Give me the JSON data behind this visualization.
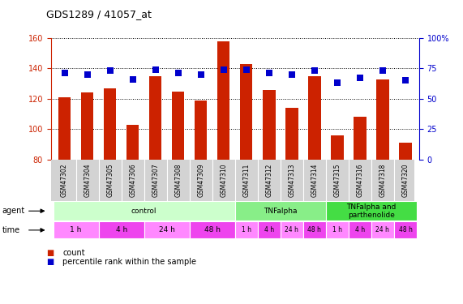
{
  "title": "GDS1289 / 41057_at",
  "samples": [
    "GSM47302",
    "GSM47304",
    "GSM47305",
    "GSM47306",
    "GSM47307",
    "GSM47308",
    "GSM47309",
    "GSM47310",
    "GSM47311",
    "GSM47312",
    "GSM47313",
    "GSM47314",
    "GSM47315",
    "GSM47316",
    "GSM47318",
    "GSM47320"
  ],
  "count_values": [
    121,
    124,
    127,
    103,
    135,
    125,
    119,
    158,
    143,
    126,
    114,
    135,
    96,
    108,
    133,
    91
  ],
  "percentile_values": [
    71,
    70,
    73,
    66,
    74,
    71,
    70,
    74,
    74,
    71,
    70,
    73,
    63,
    67,
    73,
    65
  ],
  "ylim_left": [
    80,
    160
  ],
  "ylim_right": [
    0,
    100
  ],
  "yticks_left": [
    80,
    100,
    120,
    140,
    160
  ],
  "yticks_right": [
    0,
    25,
    50,
    75,
    100
  ],
  "bar_color": "#CC2200",
  "dot_color": "#0000CC",
  "bar_width": 0.55,
  "grid_color": "black",
  "left_axis_color": "#CC2200",
  "right_axis_color": "#0000CC",
  "dot_size": 40,
  "agent_defs": [
    [
      0,
      7,
      "control",
      "#CCFFCC"
    ],
    [
      8,
      11,
      "TNFalpha",
      "#88EE88"
    ],
    [
      12,
      15,
      "TNFalpha and\nparthenolide",
      "#44DD44"
    ]
  ],
  "time_defs": [
    [
      0,
      1,
      "1 h",
      "#FF88FF"
    ],
    [
      2,
      3,
      "4 h",
      "#EE44EE"
    ],
    [
      4,
      5,
      "24 h",
      "#FF88FF"
    ],
    [
      6,
      7,
      "48 h",
      "#EE44EE"
    ],
    [
      8,
      8,
      "1 h",
      "#FF88FF"
    ],
    [
      9,
      9,
      "4 h",
      "#EE44EE"
    ],
    [
      10,
      10,
      "24 h",
      "#FF88FF"
    ],
    [
      11,
      11,
      "48 h",
      "#EE44EE"
    ],
    [
      12,
      12,
      "1 h",
      "#FF88FF"
    ],
    [
      13,
      13,
      "4 h",
      "#EE44EE"
    ],
    [
      14,
      14,
      "24 h",
      "#FF88FF"
    ],
    [
      15,
      15,
      "48 h",
      "#EE44EE"
    ]
  ]
}
